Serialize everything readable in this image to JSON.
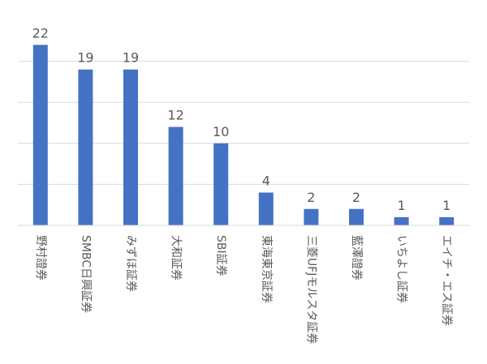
{
  "chart_data": {
    "type": "bar",
    "title": "",
    "xlabel": "",
    "ylabel": "",
    "ylim": [
      0,
      25
    ],
    "grid": true,
    "bar_color": "#4472C4",
    "categories": [
      "野村證券",
      "SMBC日興証券",
      "みずほ証券",
      "大和証券",
      "SBI証券",
      "東海東京証券",
      "三菱UFJモルスタ証券",
      "藍澤證券",
      "いちよし証券",
      "エイチ・エス証券"
    ],
    "values": [
      22,
      19,
      19,
      12,
      10,
      4,
      2,
      2,
      1,
      1
    ]
  }
}
